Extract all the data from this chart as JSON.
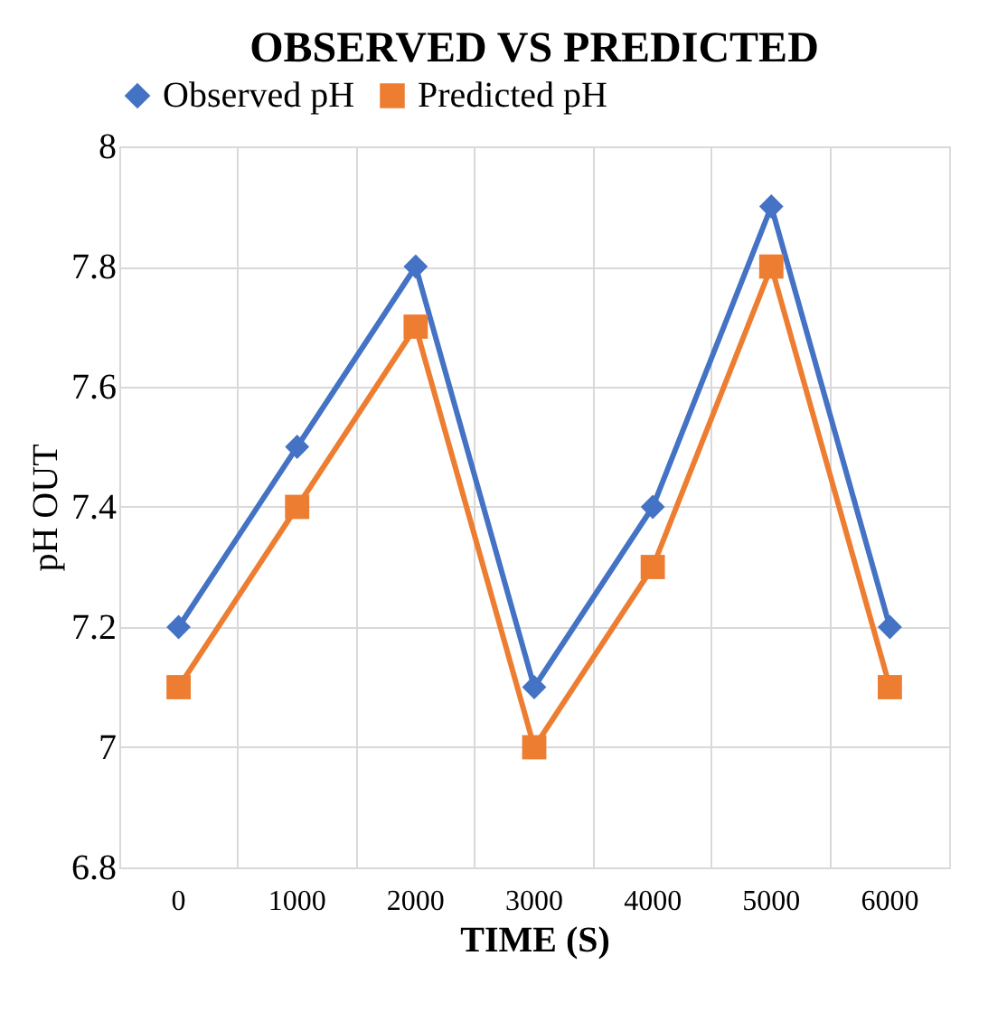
{
  "chart_data": {
    "type": "line",
    "title": "OBSERVED VS PREDICTED",
    "xlabel": "TIME (S)",
    "ylabel": "pH OUT",
    "categories": [
      "0",
      "1000",
      "2000",
      "3000",
      "4000",
      "5000",
      "6000"
    ],
    "series": [
      {
        "name": "Observed pH",
        "color": "#4472c4",
        "marker": "diamond",
        "values": [
          7.2,
          7.5,
          7.8,
          7.1,
          7.4,
          7.9,
          7.2
        ]
      },
      {
        "name": "Predicted pH",
        "color": "#ed7d31",
        "marker": "square",
        "values": [
          7.1,
          7.4,
          7.7,
          7.0,
          7.3,
          7.8,
          7.1
        ]
      }
    ],
    "ylim": [
      6.8,
      8
    ],
    "yticks": [
      6.8,
      7,
      7.2,
      7.4,
      7.6,
      7.8,
      8
    ],
    "grid": true,
    "legend": "top",
    "line_style": "solid"
  }
}
